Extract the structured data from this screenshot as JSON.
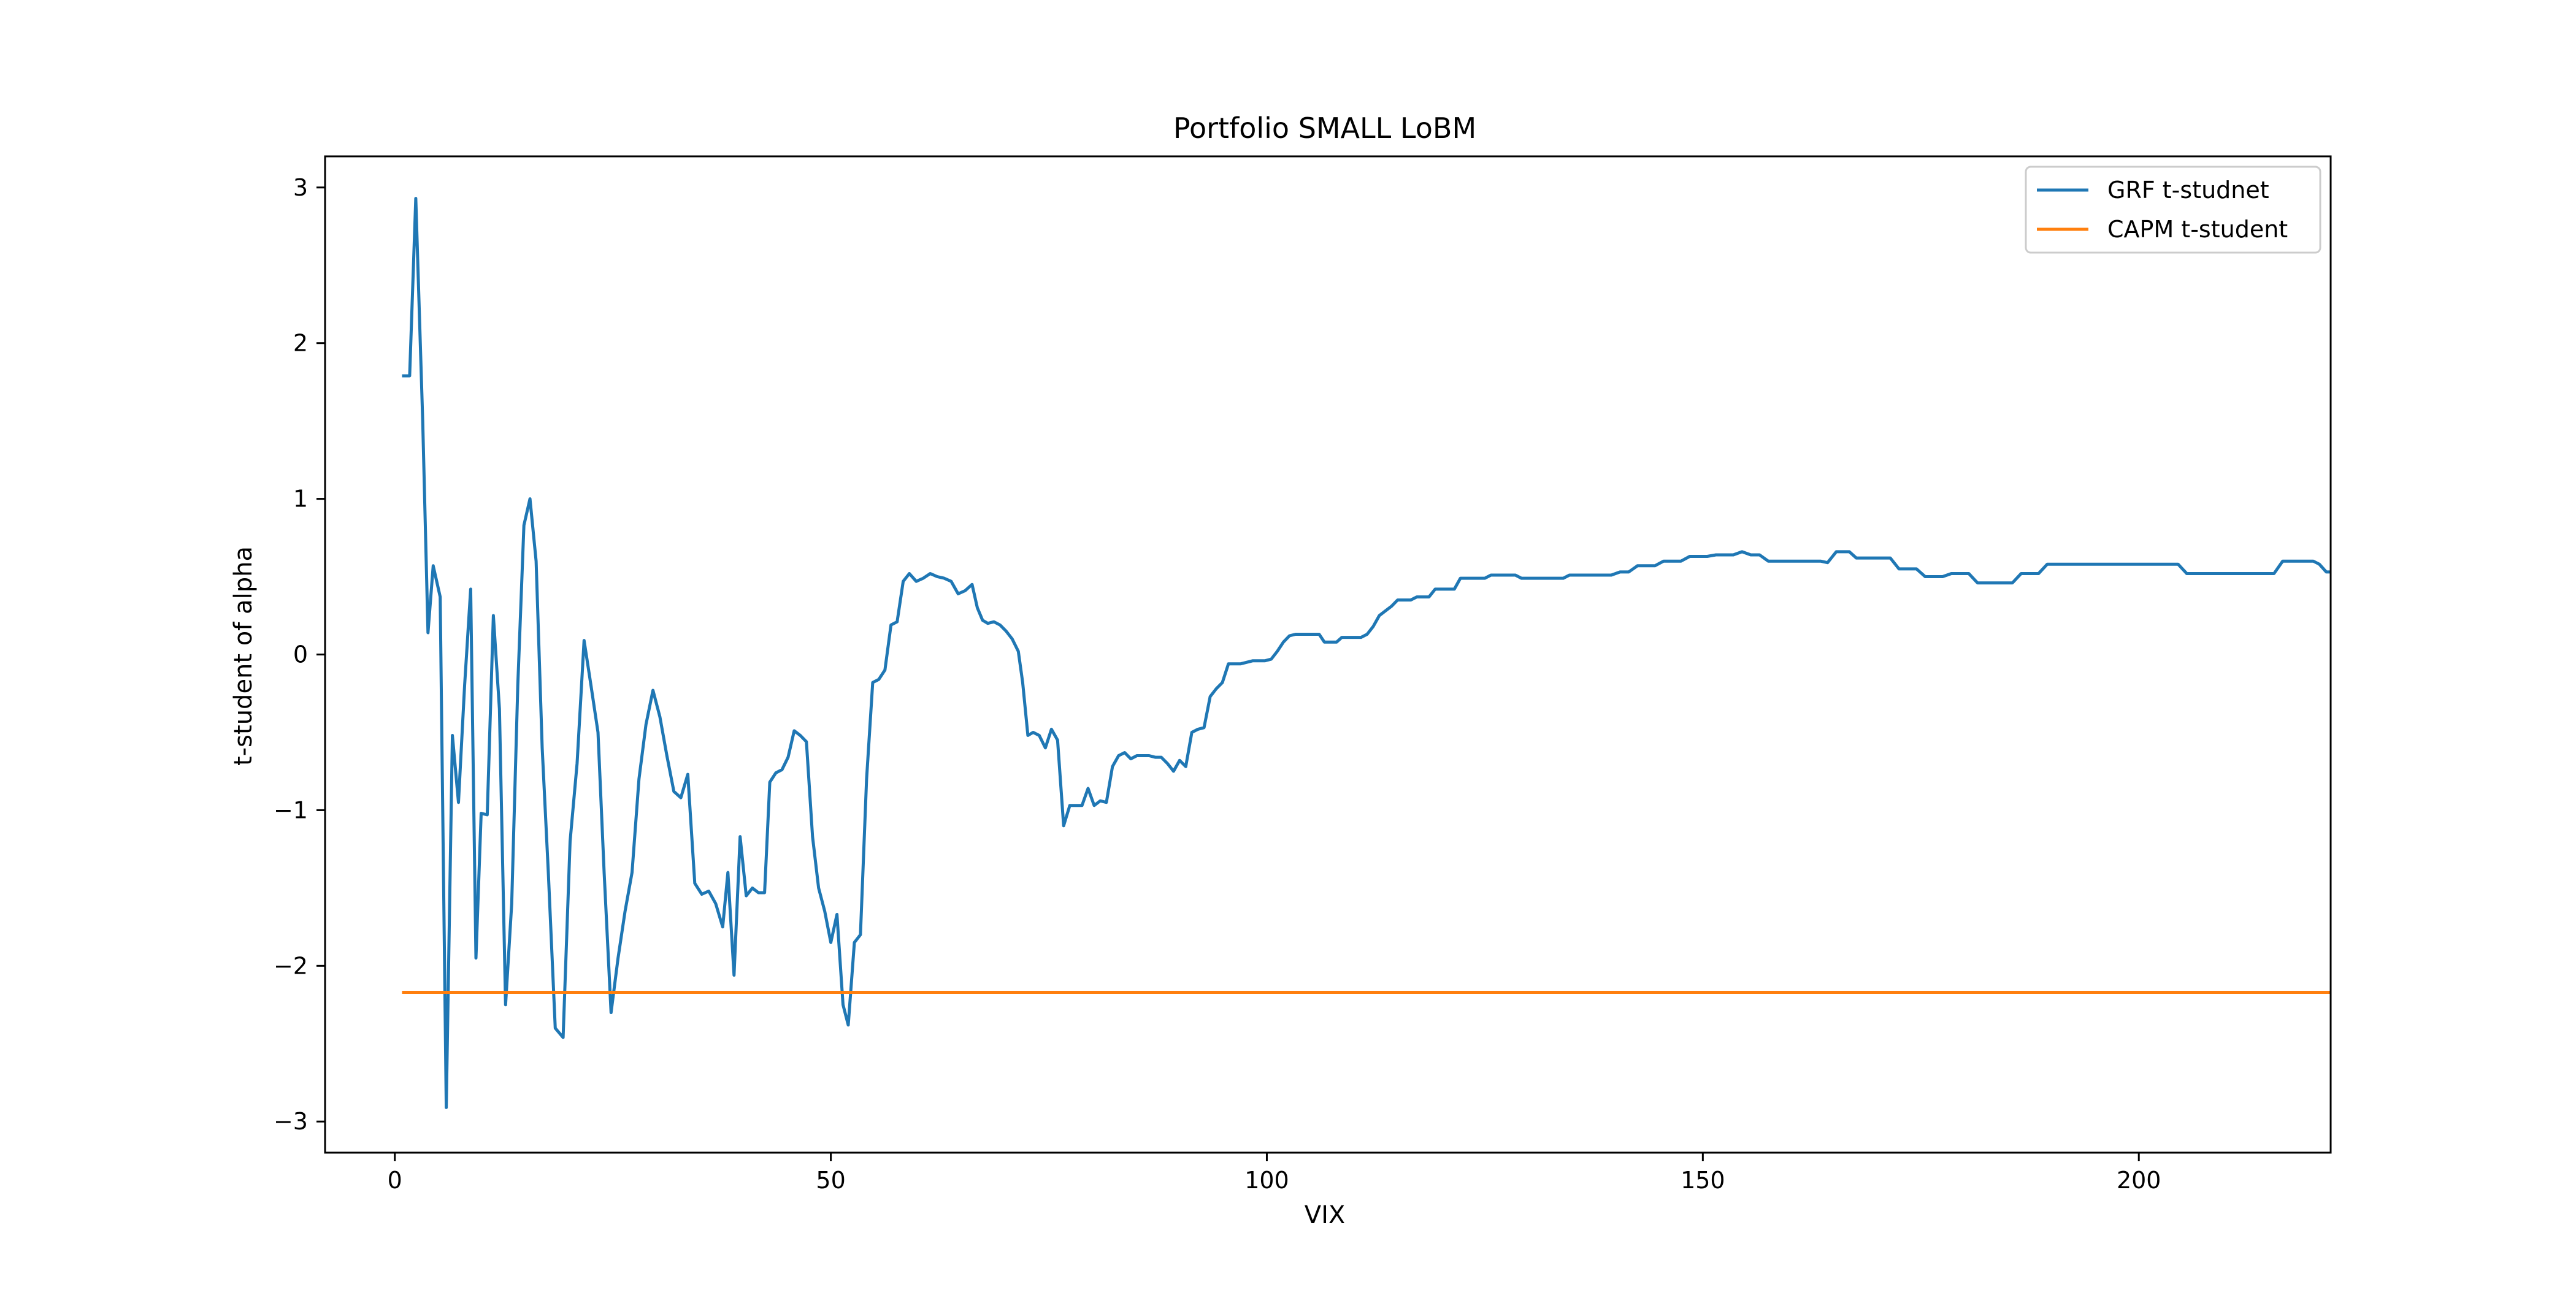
{
  "chart_data": {
    "type": "line",
    "title": "Portfolio SMALL LoBM",
    "xlabel": "VIX",
    "ylabel": "t-student of alpha",
    "xlim": [
      -8,
      222
    ],
    "ylim": [
      -3.2,
      3.2
    ],
    "x_ticks": [
      0,
      50,
      100,
      150,
      200
    ],
    "y_ticks": [
      -3,
      -2,
      -1,
      0,
      1,
      2,
      3
    ],
    "x_tick_labels": [
      "0",
      "50",
      "100",
      "150",
      "200"
    ],
    "y_tick_labels": [
      "−3",
      "−2",
      "−1",
      "0",
      "1",
      "2",
      "3"
    ],
    "grid": false,
    "legend_position": "top-right",
    "series": [
      {
        "name": "GRF t-studnet",
        "color": "#1f77b4",
        "points": [
          [
            1,
            1.79
          ],
          [
            1.7,
            1.79
          ],
          [
            2.4,
            2.93
          ],
          [
            3.2,
            1.5
          ],
          [
            3.8,
            0.14
          ],
          [
            4.4,
            0.57
          ],
          [
            5.2,
            0.37
          ],
          [
            5.9,
            -2.91
          ],
          [
            6.6,
            -0.52
          ],
          [
            7.3,
            -0.95
          ],
          [
            8,
            -0.2
          ],
          [
            8.7,
            0.42
          ],
          [
            9.3,
            -1.95
          ],
          [
            9.9,
            -1.02
          ],
          [
            10.6,
            -1.03
          ],
          [
            11.3,
            0.25
          ],
          [
            12,
            -0.35
          ],
          [
            12.7,
            -2.25
          ],
          [
            13.4,
            -1.6
          ],
          [
            14.1,
            -0.2
          ],
          [
            14.8,
            0.83
          ],
          [
            15.5,
            1.0
          ],
          [
            16.2,
            0.6
          ],
          [
            16.9,
            -0.6
          ],
          [
            17.6,
            -1.4
          ],
          [
            18.4,
            -2.4
          ],
          [
            19.3,
            -2.46
          ],
          [
            20.1,
            -1.2
          ],
          [
            20.9,
            -0.7
          ],
          [
            21.7,
            0.09
          ],
          [
            22.5,
            -0.2
          ],
          [
            23.3,
            -0.5
          ],
          [
            24.0,
            -1.4
          ],
          [
            24.8,
            -2.3
          ],
          [
            25.6,
            -1.95
          ],
          [
            26.4,
            -1.65
          ],
          [
            27.2,
            -1.4
          ],
          [
            28.0,
            -0.8
          ],
          [
            28.8,
            -0.45
          ],
          [
            29.6,
            -0.23
          ],
          [
            30.4,
            -0.4
          ],
          [
            31.2,
            -0.65
          ],
          [
            32.0,
            -0.88
          ],
          [
            32.8,
            -0.92
          ],
          [
            33.6,
            -0.77
          ],
          [
            34.4,
            -1.47
          ],
          [
            35.2,
            -1.54
          ],
          [
            36.0,
            -1.52
          ],
          [
            36.8,
            -1.6
          ],
          [
            37.6,
            -1.75
          ],
          [
            38.2,
            -1.4
          ],
          [
            38.9,
            -2.06
          ],
          [
            39.6,
            -1.17
          ],
          [
            40.3,
            -1.55
          ],
          [
            41.0,
            -1.5
          ],
          [
            41.7,
            -1.53
          ],
          [
            42.4,
            -1.53
          ],
          [
            43.0,
            -0.82
          ],
          [
            43.7,
            -0.76
          ],
          [
            44.4,
            -0.74
          ],
          [
            45.1,
            -0.66
          ],
          [
            45.8,
            -0.49
          ],
          [
            46.5,
            -0.52
          ],
          [
            47.2,
            -0.56
          ],
          [
            47.9,
            -1.17
          ],
          [
            48.6,
            -1.5
          ],
          [
            49.3,
            -1.65
          ],
          [
            50.0,
            -1.85
          ],
          [
            50.7,
            -1.67
          ],
          [
            51.4,
            -2.25
          ],
          [
            52.0,
            -2.38
          ],
          [
            52.7,
            -1.85
          ],
          [
            53.4,
            -1.8
          ],
          [
            54.1,
            -0.8
          ],
          [
            54.8,
            -0.18
          ],
          [
            55.5,
            -0.16
          ],
          [
            56.2,
            -0.1
          ],
          [
            56.9,
            0.19
          ],
          [
            57.6,
            0.21
          ],
          [
            58.3,
            0.47
          ],
          [
            59.0,
            0.52
          ],
          [
            59.8,
            0.47
          ],
          [
            60.6,
            0.49
          ],
          [
            61.4,
            0.52
          ],
          [
            62.2,
            0.5
          ],
          [
            63.0,
            0.49
          ],
          [
            63.8,
            0.47
          ],
          [
            64.6,
            0.39
          ],
          [
            65.4,
            0.41
          ],
          [
            66.2,
            0.45
          ],
          [
            66.8,
            0.3
          ],
          [
            67.4,
            0.22
          ],
          [
            68.0,
            0.2
          ],
          [
            68.7,
            0.21
          ],
          [
            69.4,
            0.19
          ],
          [
            70.1,
            0.15
          ],
          [
            70.8,
            0.1
          ],
          [
            71.5,
            0.02
          ],
          [
            72.0,
            -0.18
          ],
          [
            72.6,
            -0.52
          ],
          [
            73.2,
            -0.5
          ],
          [
            73.9,
            -0.52
          ],
          [
            74.6,
            -0.6
          ],
          [
            75.3,
            -0.48
          ],
          [
            76.0,
            -0.55
          ],
          [
            76.7,
            -1.1
          ],
          [
            77.4,
            -0.97
          ],
          [
            78.1,
            -0.97
          ],
          [
            78.8,
            -0.97
          ],
          [
            79.5,
            -0.86
          ],
          [
            80.2,
            -0.97
          ],
          [
            80.9,
            -0.94
          ],
          [
            81.6,
            -0.95
          ],
          [
            82.3,
            -0.72
          ],
          [
            83.0,
            -0.65
          ],
          [
            83.7,
            -0.63
          ],
          [
            84.4,
            -0.67
          ],
          [
            85.1,
            -0.65
          ],
          [
            85.8,
            -0.65
          ],
          [
            86.5,
            -0.65
          ],
          [
            87.2,
            -0.66
          ],
          [
            87.9,
            -0.66
          ],
          [
            88.6,
            -0.7
          ],
          [
            89.3,
            -0.75
          ],
          [
            90.0,
            -0.68
          ],
          [
            90.7,
            -0.72
          ],
          [
            91.4,
            -0.5
          ],
          [
            92.1,
            -0.48
          ],
          [
            92.8,
            -0.47
          ],
          [
            93.5,
            -0.27
          ],
          [
            94.2,
            -0.22
          ],
          [
            94.9,
            -0.18
          ],
          [
            95.6,
            -0.06
          ],
          [
            96.3,
            -0.06
          ],
          [
            97.0,
            -0.06
          ],
          [
            97.7,
            -0.05
          ],
          [
            98.4,
            -0.04
          ],
          [
            99.8,
            -0.04
          ],
          [
            100.5,
            -0.03
          ],
          [
            101.2,
            0.02
          ],
          [
            101.9,
            0.08
          ],
          [
            102.6,
            0.12
          ],
          [
            103.3,
            0.13
          ],
          [
            106.0,
            0.13
          ],
          [
            106.6,
            0.08
          ],
          [
            108.0,
            0.08
          ],
          [
            108.6,
            0.11
          ],
          [
            110.8,
            0.11
          ],
          [
            111.5,
            0.13
          ],
          [
            112.2,
            0.18
          ],
          [
            112.9,
            0.25
          ],
          [
            113.6,
            0.28
          ],
          [
            114.3,
            0.31
          ],
          [
            115.0,
            0.35
          ],
          [
            116.5,
            0.35
          ],
          [
            117.2,
            0.37
          ],
          [
            118.6,
            0.37
          ],
          [
            119.3,
            0.42
          ],
          [
            121.5,
            0.42
          ],
          [
            122.2,
            0.49
          ],
          [
            125.0,
            0.49
          ],
          [
            125.7,
            0.51
          ],
          [
            128.5,
            0.51
          ],
          [
            129.2,
            0.49
          ],
          [
            134.0,
            0.49
          ],
          [
            134.7,
            0.51
          ],
          [
            139.5,
            0.51
          ],
          [
            140.5,
            0.53
          ],
          [
            141.5,
            0.53
          ],
          [
            142.5,
            0.57
          ],
          [
            144.5,
            0.57
          ],
          [
            145.5,
            0.6
          ],
          [
            147.5,
            0.6
          ],
          [
            148.5,
            0.63
          ],
          [
            150.5,
            0.63
          ],
          [
            151.5,
            0.64
          ],
          [
            153.5,
            0.64
          ],
          [
            154.5,
            0.66
          ],
          [
            155.5,
            0.64
          ],
          [
            156.5,
            0.64
          ],
          [
            157.5,
            0.6
          ],
          [
            163.5,
            0.6
          ],
          [
            164.3,
            0.59
          ],
          [
            165.3,
            0.66
          ],
          [
            166.8,
            0.66
          ],
          [
            167.6,
            0.62
          ],
          [
            171.5,
            0.62
          ],
          [
            172.5,
            0.55
          ],
          [
            174.5,
            0.55
          ],
          [
            175.5,
            0.5
          ],
          [
            177.5,
            0.5
          ],
          [
            178.5,
            0.52
          ],
          [
            180.5,
            0.52
          ],
          [
            181.5,
            0.46
          ],
          [
            185.5,
            0.46
          ],
          [
            186.5,
            0.52
          ],
          [
            188.5,
            0.52
          ],
          [
            189.5,
            0.58
          ],
          [
            193.5,
            0.58
          ],
          [
            194.5,
            0.58
          ],
          [
            204.5,
            0.58
          ],
          [
            205.5,
            0.52
          ],
          [
            208.5,
            0.52
          ],
          [
            209.5,
            0.52
          ],
          [
            215.5,
            0.52
          ],
          [
            216.5,
            0.6
          ],
          [
            220.0,
            0.6
          ],
          [
            220.7,
            0.58
          ],
          [
            221.5,
            0.53
          ],
          [
            224.0,
            0.53
          ]
        ]
      },
      {
        "name": "CAPM t-student",
        "color": "#ff7f0e",
        "points": [
          [
            1,
            -2.17
          ],
          [
            224.0,
            -2.17
          ]
        ]
      }
    ]
  }
}
